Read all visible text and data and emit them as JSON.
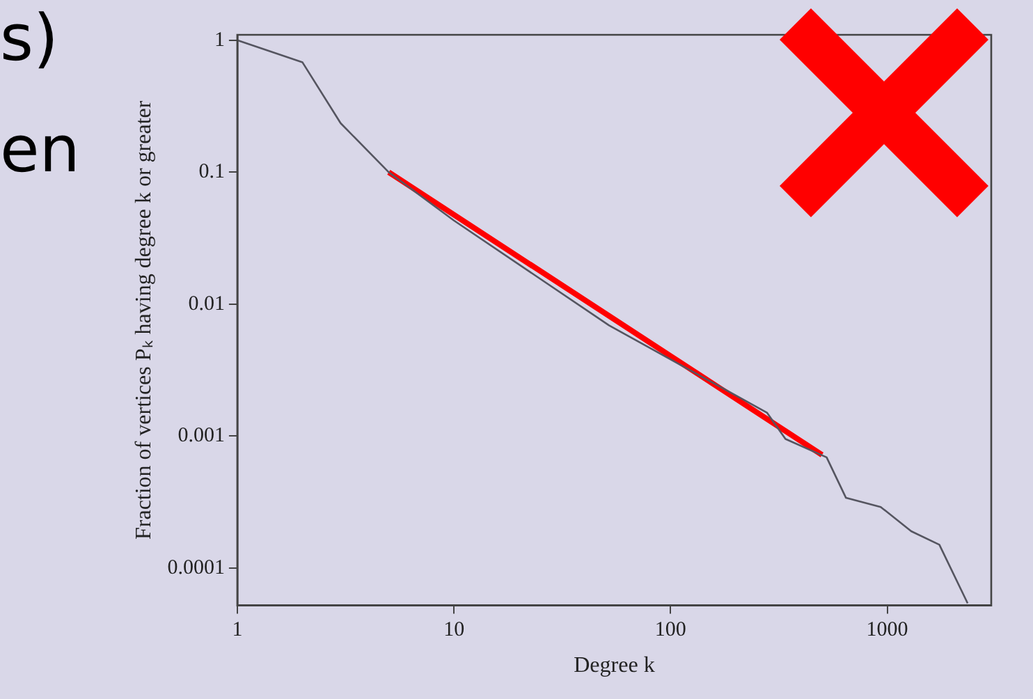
{
  "chart_data": {
    "type": "line",
    "xlabel": "Degree k",
    "ylabel": "Fraction of vertices Pₖ having degree k or greater",
    "log": "xy",
    "grid": false,
    "legend": false,
    "marker": "none",
    "line_style": "solid",
    "xlim": [
      1,
      3020
    ],
    "ylim": [
      5.2e-05,
      1.1
    ],
    "xticks": [
      1,
      10,
      100,
      1000
    ],
    "yticks": [
      1,
      0.1,
      0.01,
      0.001,
      0.0001
    ],
    "annotations": [
      "s)",
      "en"
    ],
    "series": [
      {
        "color": "#555560",
        "x": [
          1,
          2,
          3,
          5,
          10,
          52,
          279,
          339,
          525,
          645,
          933,
          1290,
          1740,
          2350
        ],
        "values": [
          1,
          0.68,
          0.235,
          0.1,
          0.043,
          0.0069,
          0.0015,
          0.00095,
          0.00069,
          0.00034,
          0.00029,
          0.00019,
          0.00015,
          5.4e-05
        ]
      },
      {
        "type": "line",
        "color": "#ff0000",
        "x": [
          5,
          500
        ],
        "values": [
          0.1,
          0.00072
        ]
      }
    ]
  }
}
